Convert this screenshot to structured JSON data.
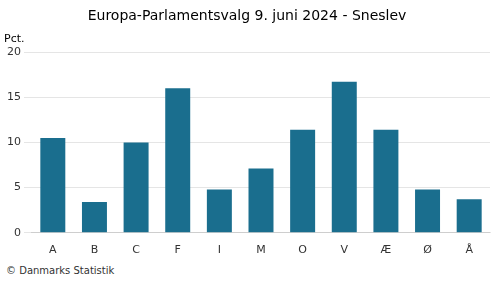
{
  "chart_data": {
    "type": "bar",
    "title": "Europa-Parlamentsvalg 9. juni 2024 - Sneslev",
    "ylabel": "Pct.",
    "annotations": [
      "© Danmarks Statistik"
    ],
    "categories": [
      "A",
      "B",
      "C",
      "F",
      "I",
      "M",
      "O",
      "V",
      "Æ",
      "Ø",
      "Å"
    ],
    "values": [
      10.5,
      3.4,
      10.0,
      16.0,
      4.8,
      7.1,
      11.4,
      16.7,
      11.4,
      4.8,
      3.7
    ],
    "color": "#1a6e8e",
    "ylim": [
      0,
      20
    ],
    "yticks": [
      0,
      5,
      10,
      15,
      20
    ],
    "grid": true
  }
}
